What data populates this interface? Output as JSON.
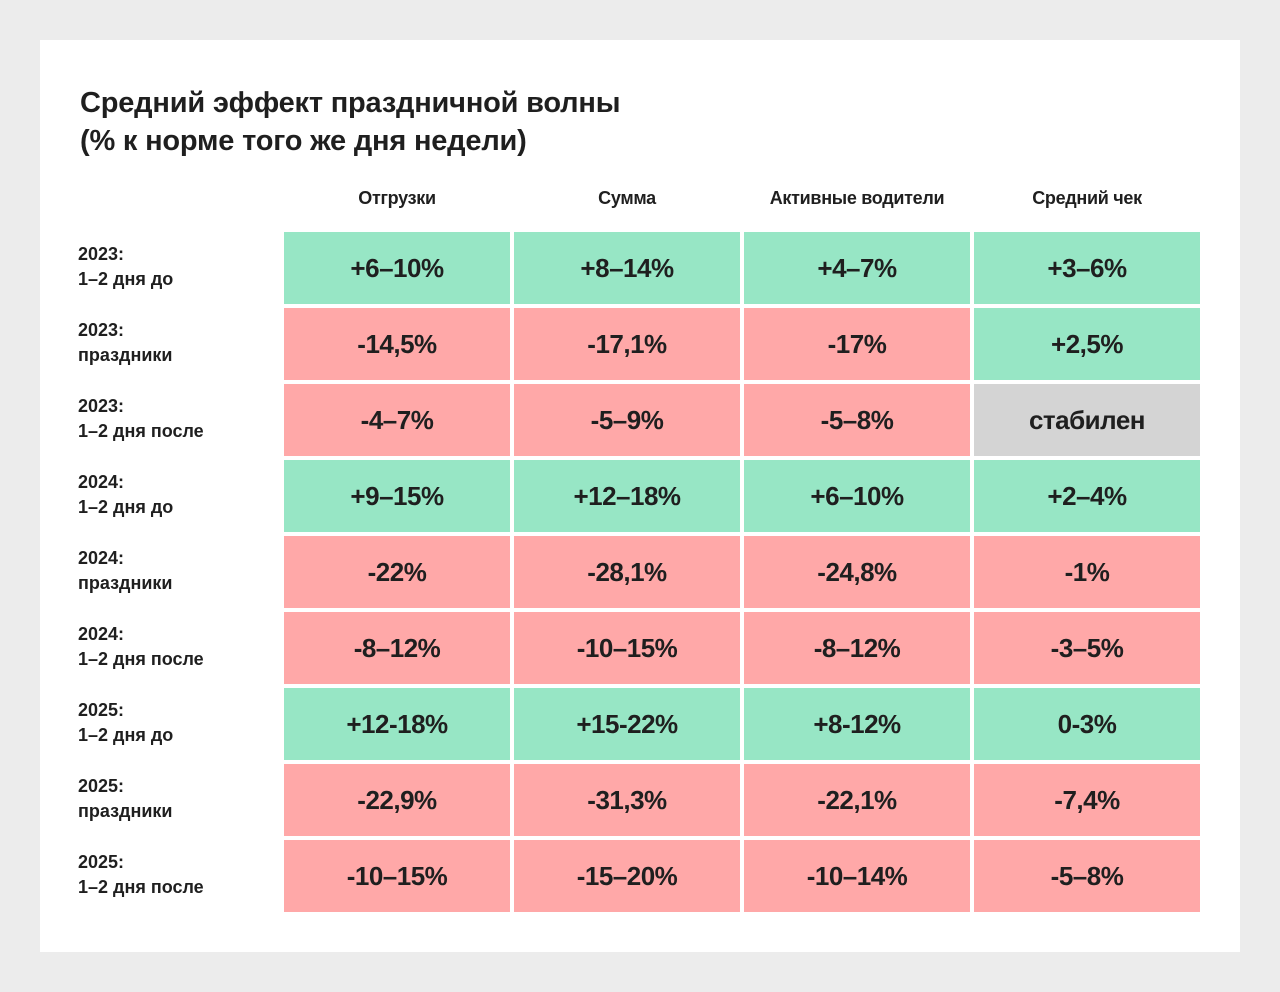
{
  "title": {
    "line1": "Средний эффект праздничной волны",
    "line2": "(% к норме того же дня недели)"
  },
  "colors": {
    "background": "#ececec",
    "card": "#ffffff",
    "positive": "#97e6c5",
    "negative": "#ffa8a8",
    "neutral": "#d4d4d4",
    "text": "#1f1f1f"
  },
  "columns": [
    "Отгрузки",
    "Сумма",
    "Активные водители",
    "Средний чек"
  ],
  "rows": [
    {
      "year": "2023:",
      "period": "1–2 дня до",
      "cells": [
        {
          "v": "+6–10%",
          "t": "pos"
        },
        {
          "v": "+8–14%",
          "t": "pos"
        },
        {
          "v": "+4–7%",
          "t": "pos"
        },
        {
          "v": "+3–6%",
          "t": "pos"
        }
      ]
    },
    {
      "year": "2023:",
      "period": "праздники",
      "cells": [
        {
          "v": "-14,5%",
          "t": "neg"
        },
        {
          "v": "-17,1%",
          "t": "neg"
        },
        {
          "v": "-17%",
          "t": "neg"
        },
        {
          "v": "+2,5%",
          "t": "pos"
        }
      ]
    },
    {
      "year": "2023:",
      "period": "1–2 дня после",
      "cells": [
        {
          "v": "-4–7%",
          "t": "neg"
        },
        {
          "v": "-5–9%",
          "t": "neg"
        },
        {
          "v": "-5–8%",
          "t": "neg"
        },
        {
          "v": "стабилен",
          "t": "neu"
        }
      ]
    },
    {
      "year": "2024:",
      "period": "1–2 дня до",
      "cells": [
        {
          "v": "+9–15%",
          "t": "pos"
        },
        {
          "v": "+12–18%",
          "t": "pos"
        },
        {
          "v": "+6–10%",
          "t": "pos"
        },
        {
          "v": "+2–4%",
          "t": "pos"
        }
      ]
    },
    {
      "year": "2024:",
      "period": "праздники",
      "cells": [
        {
          "v": "-22%",
          "t": "neg"
        },
        {
          "v": "-28,1%",
          "t": "neg"
        },
        {
          "v": "-24,8%",
          "t": "neg"
        },
        {
          "v": "-1%",
          "t": "neg"
        }
      ]
    },
    {
      "year": "2024:",
      "period": "1–2 дня после",
      "cells": [
        {
          "v": "-8–12%",
          "t": "neg"
        },
        {
          "v": "-10–15%",
          "t": "neg"
        },
        {
          "v": "-8–12%",
          "t": "neg"
        },
        {
          "v": "-3–5%",
          "t": "neg"
        }
      ]
    },
    {
      "year": "2025:",
      "period": "1–2 дня до",
      "cells": [
        {
          "v": "+12-18%",
          "t": "pos"
        },
        {
          "v": "+15-22%",
          "t": "pos"
        },
        {
          "v": "+8-12%",
          "t": "pos"
        },
        {
          "v": "0-3%",
          "t": "pos"
        }
      ]
    },
    {
      "year": "2025:",
      "period": "праздники",
      "cells": [
        {
          "v": "-22,9%",
          "t": "neg"
        },
        {
          "v": "-31,3%",
          "t": "neg"
        },
        {
          "v": "-22,1%",
          "t": "neg"
        },
        {
          "v": "-7,4%",
          "t": "neg"
        }
      ]
    },
    {
      "year": "2025:",
      "period": "1–2 дня после",
      "cells": [
        {
          "v": "-10–15%",
          "t": "neg"
        },
        {
          "v": "-15–20%",
          "t": "neg"
        },
        {
          "v": "-10–14%",
          "t": "neg"
        },
        {
          "v": "-5–8%",
          "t": "neg"
        }
      ]
    }
  ]
}
